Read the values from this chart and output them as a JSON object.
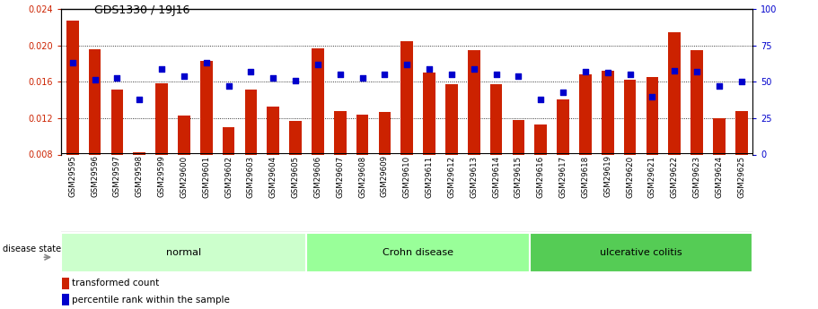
{
  "title": "GDS1330 / 19J16",
  "samples": [
    "GSM29595",
    "GSM29596",
    "GSM29597",
    "GSM29598",
    "GSM29599",
    "GSM29600",
    "GSM29601",
    "GSM29602",
    "GSM29603",
    "GSM29604",
    "GSM29605",
    "GSM29606",
    "GSM29607",
    "GSM29608",
    "GSM29609",
    "GSM29610",
    "GSM29611",
    "GSM29612",
    "GSM29613",
    "GSM29614",
    "GSM29615",
    "GSM29616",
    "GSM29617",
    "GSM29618",
    "GSM29619",
    "GSM29620",
    "GSM29621",
    "GSM29622",
    "GSM29623",
    "GSM29624",
    "GSM29625"
  ],
  "transformed_count": [
    0.0228,
    0.0196,
    0.0152,
    0.0082,
    0.0158,
    0.0123,
    0.0183,
    0.011,
    0.0152,
    0.0133,
    0.0117,
    0.0197,
    0.0128,
    0.0124,
    0.0127,
    0.0205,
    0.017,
    0.0157,
    0.0195,
    0.0157,
    0.0118,
    0.0113,
    0.0141,
    0.0168,
    0.0172,
    0.0162,
    0.0165,
    0.0215,
    0.0195,
    0.012,
    0.0128
  ],
  "percentile_rank_pct": [
    63.5,
    51.5,
    52.5,
    38.0,
    59.0,
    54.0,
    63.5,
    47.0,
    57.0,
    53.0,
    51.0,
    62.0,
    55.0,
    53.0,
    55.0,
    62.0,
    59.0,
    55.5,
    59.0,
    55.5,
    54.0,
    38.0,
    43.0,
    57.0,
    56.5,
    55.5,
    40.0,
    57.5,
    57.0,
    47.0,
    50.0
  ],
  "groups": [
    {
      "label": "normal",
      "start": 0,
      "end": 11,
      "color": "#ccffcc"
    },
    {
      "label": "Crohn disease",
      "start": 11,
      "end": 21,
      "color": "#99ff99"
    },
    {
      "label": "ulcerative colitis",
      "start": 21,
      "end": 31,
      "color": "#55cc55"
    }
  ],
  "ylim_left": [
    0.008,
    0.024
  ],
  "yticks_left": [
    0.008,
    0.012,
    0.016,
    0.02,
    0.024
  ],
  "ylim_right": [
    0,
    100
  ],
  "yticks_right": [
    0,
    25,
    50,
    75,
    100
  ],
  "bar_color": "#cc2200",
  "dot_color": "#0000cc",
  "bg_color": "#ffffff",
  "tick_bg": "#c8c8c8",
  "left_axis_color": "#cc2200",
  "right_axis_color": "#0000cc",
  "title_color": "#000000"
}
